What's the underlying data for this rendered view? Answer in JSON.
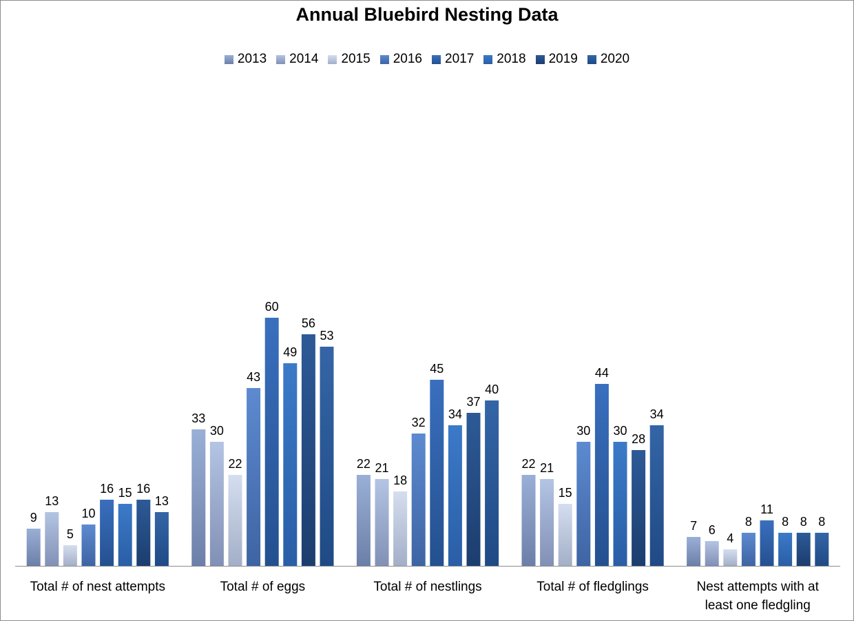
{
  "chart_data": {
    "type": "bar",
    "title": "Annual Bluebird Nesting Data",
    "xlabel": "",
    "ylabel": "",
    "ylim": [
      0,
      60
    ],
    "grid": false,
    "legend_position": "top",
    "categories": [
      [
        "Total # of nest attempts"
      ],
      [
        "Total # of eggs"
      ],
      [
        "Total # of nestlings"
      ],
      [
        "Total # of fledglings"
      ],
      [
        "Nest attempts with at",
        "least one fledgling"
      ]
    ],
    "series": [
      {
        "name": "2013",
        "color_top": "#9aafd6",
        "color_bottom": "#6c7fa8",
        "values": [
          9,
          33,
          22,
          22,
          7
        ]
      },
      {
        "name": "2014",
        "color_top": "#b4c4e3",
        "color_bottom": "#8190b5",
        "values": [
          13,
          30,
          21,
          21,
          6
        ]
      },
      {
        "name": "2015",
        "color_top": "#d5deef",
        "color_bottom": "#a3afc8",
        "values": [
          5,
          22,
          18,
          15,
          4
        ]
      },
      {
        "name": "2016",
        "color_top": "#5d8ad0",
        "color_bottom": "#3e64a3",
        "values": [
          10,
          43,
          32,
          30,
          8
        ]
      },
      {
        "name": "2017",
        "color_top": "#3a6fbe",
        "color_bottom": "#24508f",
        "values": [
          16,
          60,
          45,
          44,
          11
        ]
      },
      {
        "name": "2018",
        "color_top": "#3b7ac8",
        "color_bottom": "#2a5ea6",
        "values": [
          15,
          49,
          34,
          30,
          8
        ]
      },
      {
        "name": "2019",
        "color_top": "#2d5a97",
        "color_bottom": "#1c3d6e",
        "values": [
          16,
          56,
          37,
          28,
          8
        ]
      },
      {
        "name": "2020",
        "color_top": "#3465a6",
        "color_bottom": "#1f4a85",
        "values": [
          13,
          53,
          40,
          34,
          8
        ]
      }
    ]
  }
}
